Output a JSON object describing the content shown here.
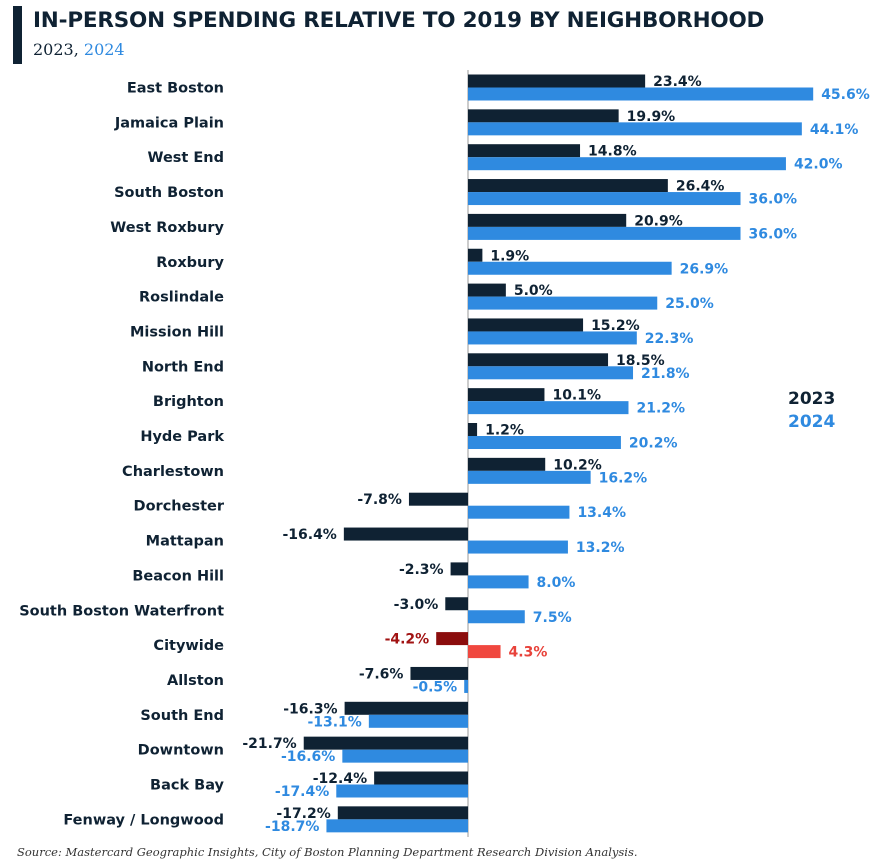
{
  "header": {
    "title": "IN-PERSON SPENDING RELATIVE TO 2019 BY NEIGHBORHOOD",
    "subtitle_year1": "2023",
    "subtitle_sep": ", ",
    "subtitle_year2": "2024"
  },
  "legend": {
    "series1": "2023",
    "series2": "2024"
  },
  "source": "Source: Mastercard Geographic Insights, City of Boston Planning Department Research Division Analysis.",
  "colors": {
    "series_2023": "#0f2233",
    "series_2024": "#2f8ae0",
    "citywide_2023": "#8b0d0d",
    "citywide_2024": "#f0473f",
    "label_2023": "#0f2233",
    "label_2024": "#2f8ae0",
    "citywide_label_2023": "#a11212",
    "citywide_label_2024": "#e8423a",
    "axis": "#999999"
  },
  "chart_data": {
    "type": "bar",
    "orientation": "horizontal",
    "categories": [
      "East Boston",
      "Jamaica Plain",
      "West End",
      "South Boston",
      "West Roxbury",
      "Roxbury",
      "Roslindale",
      "Mission Hill",
      "North End",
      "Brighton",
      "Hyde Park",
      "Charlestown",
      "Dorchester",
      "Mattapan",
      "Beacon Hill",
      "South Boston Waterfront",
      "Citywide",
      "Allston",
      "South End",
      "Downtown",
      "Back Bay",
      "Fenway / Longwood"
    ],
    "highlight_category": "Citywide",
    "series": [
      {
        "name": "2023",
        "values": [
          23.4,
          19.9,
          14.8,
          26.4,
          20.9,
          1.9,
          5.0,
          15.2,
          18.5,
          10.1,
          1.2,
          10.2,
          -7.8,
          -16.4,
          -2.3,
          -3.0,
          -4.2,
          -7.6,
          -16.3,
          -21.7,
          -12.4,
          -17.2
        ]
      },
      {
        "name": "2024",
        "values": [
          45.6,
          44.1,
          42.0,
          36.0,
          36.0,
          26.9,
          25.0,
          22.3,
          21.8,
          21.2,
          20.2,
          16.2,
          13.4,
          13.2,
          8.0,
          7.5,
          4.3,
          -0.5,
          -13.1,
          -16.6,
          -17.4,
          -18.7
        ]
      }
    ],
    "value_suffix": "%",
    "xlim": [
      -25,
      50
    ],
    "grid": false,
    "legend_position": "right"
  }
}
